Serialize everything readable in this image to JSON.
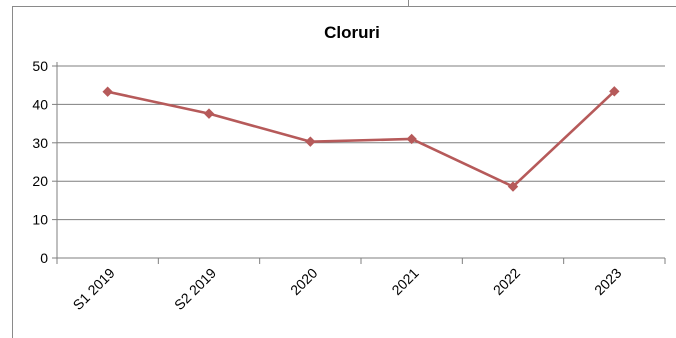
{
  "chart_data": {
    "type": "line",
    "title": "Cloruri",
    "xlabel": "",
    "ylabel": "",
    "categories": [
      "S1 2019",
      "S2 2019",
      "2020",
      "2021",
      "2022",
      "2023"
    ],
    "series": [
      {
        "values": [
          43.3,
          37.6,
          30.3,
          31.0,
          18.6,
          43.4
        ],
        "color": "#b65a5a",
        "marker": "diamond"
      }
    ],
    "ylim": [
      0,
      50
    ],
    "yticks": [
      0,
      10,
      20,
      30,
      40,
      50
    ],
    "grid": true,
    "legend": "none"
  }
}
